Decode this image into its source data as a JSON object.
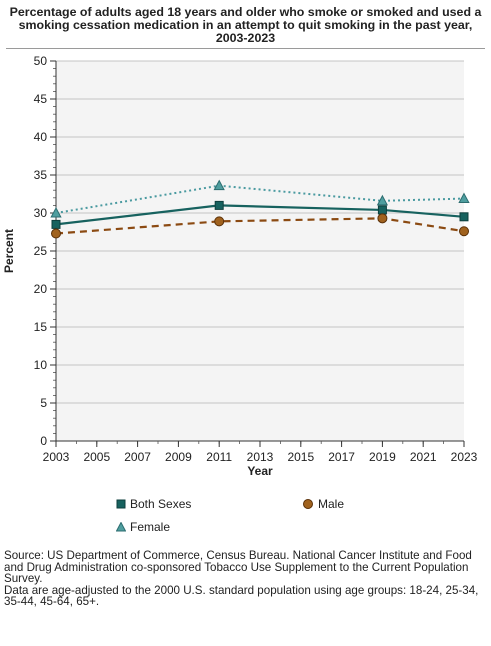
{
  "title": "Percentage of adults aged 18 years and older who smoke or smoked and used a smoking cessation medication in an attempt to quit smoking in the past year, 2003-2023",
  "chart_data": {
    "type": "line",
    "x": [
      2003,
      2011,
      2019,
      2023
    ],
    "x_ticks": [
      2003,
      2005,
      2007,
      2009,
      2011,
      2013,
      2015,
      2017,
      2019,
      2021,
      2023
    ],
    "y_ticks": [
      0,
      5,
      10,
      15,
      20,
      25,
      30,
      35,
      40,
      45,
      50
    ],
    "xlabel": "Year",
    "ylabel": "Percent",
    "xlim": [
      2003,
      2023
    ],
    "ylim": [
      0,
      50
    ],
    "grid": true,
    "legend_position": "bottom",
    "series": [
      {
        "name": "Both Sexes",
        "values": [
          28.5,
          31.0,
          30.4,
          29.5
        ],
        "color": "#17625f",
        "line": "solid",
        "marker": "square"
      },
      {
        "name": "Male",
        "values": [
          27.3,
          28.9,
          29.3,
          27.6
        ],
        "color": "#8b4a12",
        "marker_fill": "#a0621e",
        "line": "dashed",
        "marker": "circle"
      },
      {
        "name": "Female",
        "values": [
          30.0,
          33.6,
          31.6,
          31.9
        ],
        "color": "#4a9aa0",
        "marker_fill": "#4f9e9f",
        "line": "dotted",
        "marker": "triangle"
      }
    ]
  },
  "source": {
    "line1": "Source: US Department of Commerce, Census Bureau. National Cancer Institute and Food and Drug Administration co-sponsored Tobacco Use Supplement to the Current Population Survey.",
    "line2": "Data are age-adjusted to the 2000 U.S. standard population using age groups: 18-24, 25-34, 35-44, 45-64, 65+."
  }
}
